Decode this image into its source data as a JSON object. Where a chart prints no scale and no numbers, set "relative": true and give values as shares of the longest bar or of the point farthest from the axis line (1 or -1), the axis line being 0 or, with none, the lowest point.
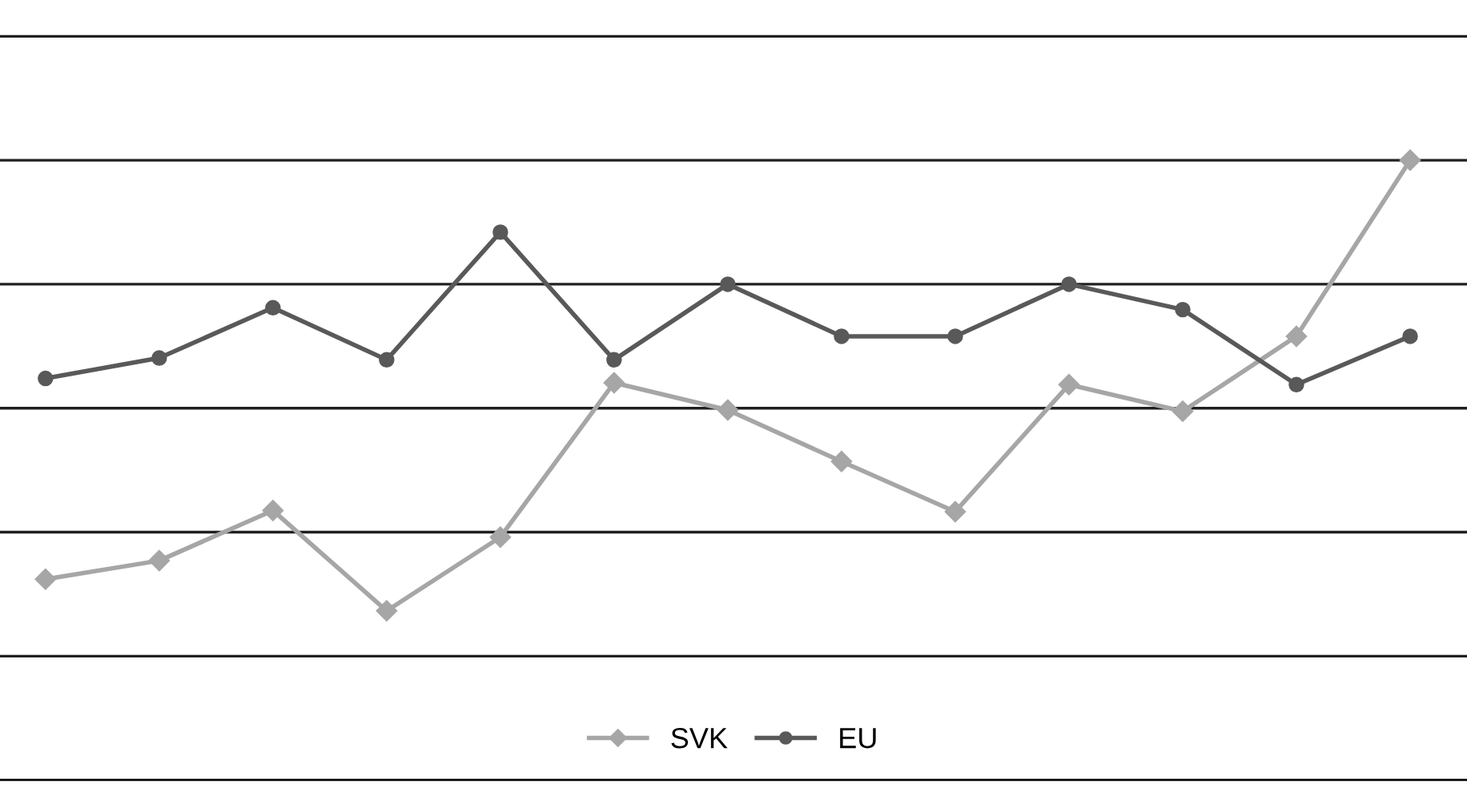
{
  "chart_data": {
    "type": "line",
    "relative": true,
    "categories": [
      null,
      null,
      null,
      null,
      null,
      null,
      null,
      null,
      null,
      null,
      null,
      null,
      null
    ],
    "series": [
      {
        "name": "SVK",
        "color": "#a6a6a6",
        "marker": "diamond",
        "values": [
          0.324,
          0.354,
          0.435,
          0.273,
          0.392,
          0.641,
          0.597,
          0.514,
          0.433,
          0.638,
          0.595,
          0.716,
          1
        ]
      },
      {
        "name": "EU",
        "color": "#595959",
        "marker": "circle",
        "values": [
          0.648,
          0.681,
          0.762,
          0.678,
          0.884,
          0.678,
          0.8,
          0.716,
          0.716,
          0.8,
          0.759,
          0.638,
          0.716
        ]
      }
    ],
    "grid": "y",
    "legend": "bottom",
    "line_style": "solid"
  }
}
